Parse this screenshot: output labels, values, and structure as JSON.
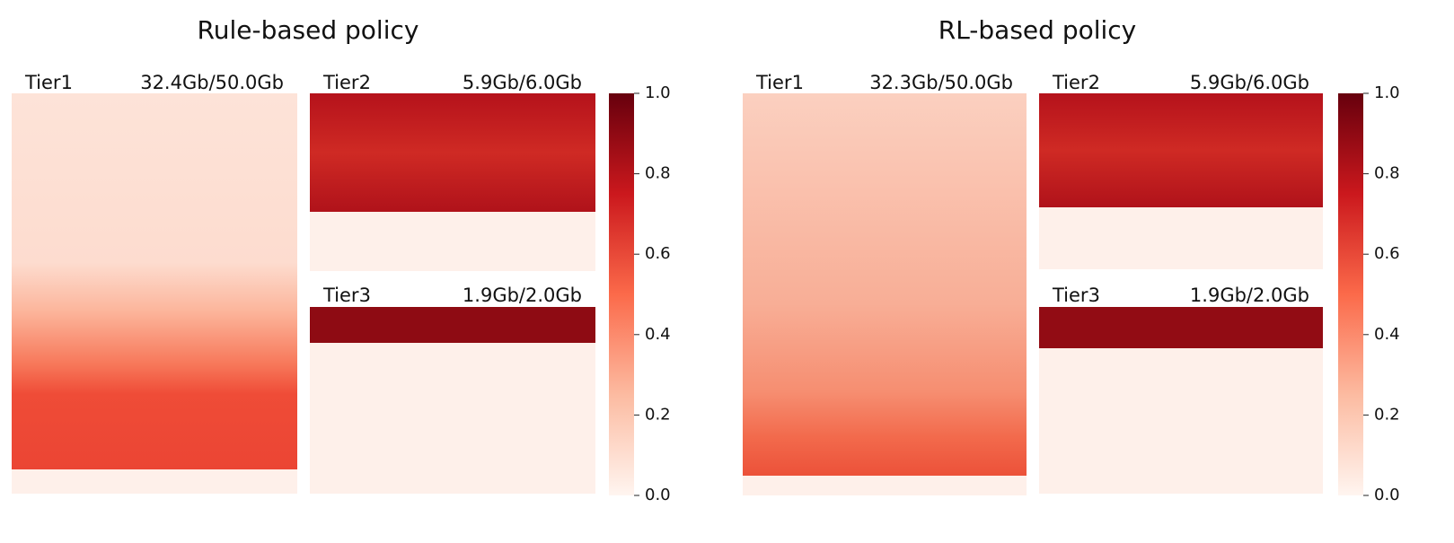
{
  "panels": [
    {
      "title": "Rule-based policy",
      "tiers": [
        {
          "name": "Tier1",
          "usage": "32.4Gb/50.0Gb"
        },
        {
          "name": "Tier2",
          "usage": "5.9Gb/6.0Gb"
        },
        {
          "name": "Tier3",
          "usage": "1.9Gb/2.0Gb"
        }
      ],
      "colorbar": {
        "lim": [
          0,
          1
        ],
        "ticks": [
          {
            "value": 0,
            "label": "0.0"
          },
          0.2,
          0.4,
          0.6,
          0.8,
          {
            "value": 1,
            "label": "1.0"
          }
        ]
      }
    },
    {
      "title": "RL-based policy",
      "tiers": [
        {
          "name": "Tier1",
          "usage": "32.3Gb/50.0Gb"
        },
        {
          "name": "Tier2",
          "usage": "5.9Gb/6.0Gb"
        },
        {
          "name": "Tier3",
          "usage": "1.9Gb/2.0Gb"
        }
      ],
      "colorbar": {
        "lim": [
          0,
          1
        ],
        "ticks": [
          {
            "value": 0,
            "label": "0.0"
          },
          0.2,
          0.4,
          0.6,
          0.8,
          {
            "value": 1,
            "label": "1.0"
          }
        ]
      }
    }
  ]
}
